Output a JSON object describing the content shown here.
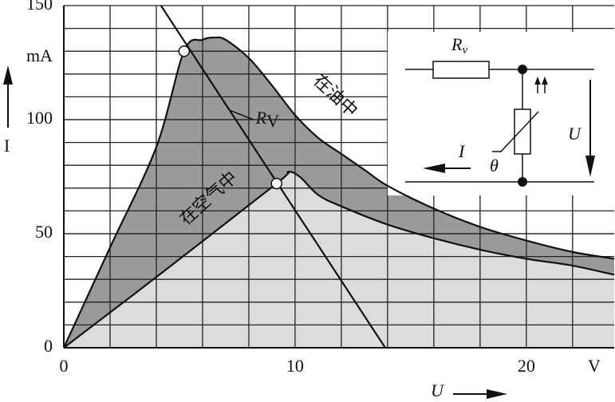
{
  "chart_data": {
    "type": "line",
    "x_label": "U",
    "y_label": "I",
    "x_unit": "V",
    "y_unit": "mA",
    "xlim": [
      0,
      23.8
    ],
    "ylim": [
      0,
      150
    ],
    "xticks": [
      0,
      10,
      20
    ],
    "yticks": [
      0,
      50,
      100,
      150
    ],
    "xminor": [
      2,
      4,
      6,
      8,
      10,
      12,
      14,
      16,
      18,
      20,
      22
    ],
    "yminor": [
      10,
      20,
      30,
      40,
      50,
      60,
      70,
      80,
      90,
      100,
      110,
      120,
      130,
      140
    ],
    "grid": true,
    "series": [
      {
        "name": "在油中",
        "color": "#9a9a9a",
        "x": [
          0,
          2,
          4,
          5.2,
          6,
          6.5,
          7,
          8,
          9,
          10,
          11,
          12,
          13,
          14,
          16,
          18,
          20,
          22,
          23.8
        ],
        "values": [
          0,
          44,
          88,
          130,
          135,
          136,
          135,
          127,
          115,
          102,
          92,
          85,
          78,
          71,
          61,
          53,
          47,
          42,
          39
        ]
      },
      {
        "name": "在空气中",
        "color": "#dcdcdc",
        "x": [
          0,
          4,
          9.2,
          9.7,
          10.2,
          11,
          12,
          14,
          16,
          18,
          20,
          22,
          23.8
        ],
        "values": [
          0,
          31,
          72,
          77,
          75,
          67,
          62,
          54,
          48,
          43,
          39,
          36,
          32
        ]
      },
      {
        "name": "R",
        "subscript": "V",
        "color": "#111111",
        "x": [
          4.2,
          13.9
        ],
        "values": [
          150,
          0
        ]
      }
    ],
    "operating_points": {
      "x": [
        5.2,
        9.2
      ],
      "values": [
        130,
        72
      ]
    },
    "circuit": {
      "resistor_label": "R",
      "resistor_subscript": "v",
      "current_label": "I",
      "voltage_label": "U",
      "temperature_label": "θ"
    }
  }
}
